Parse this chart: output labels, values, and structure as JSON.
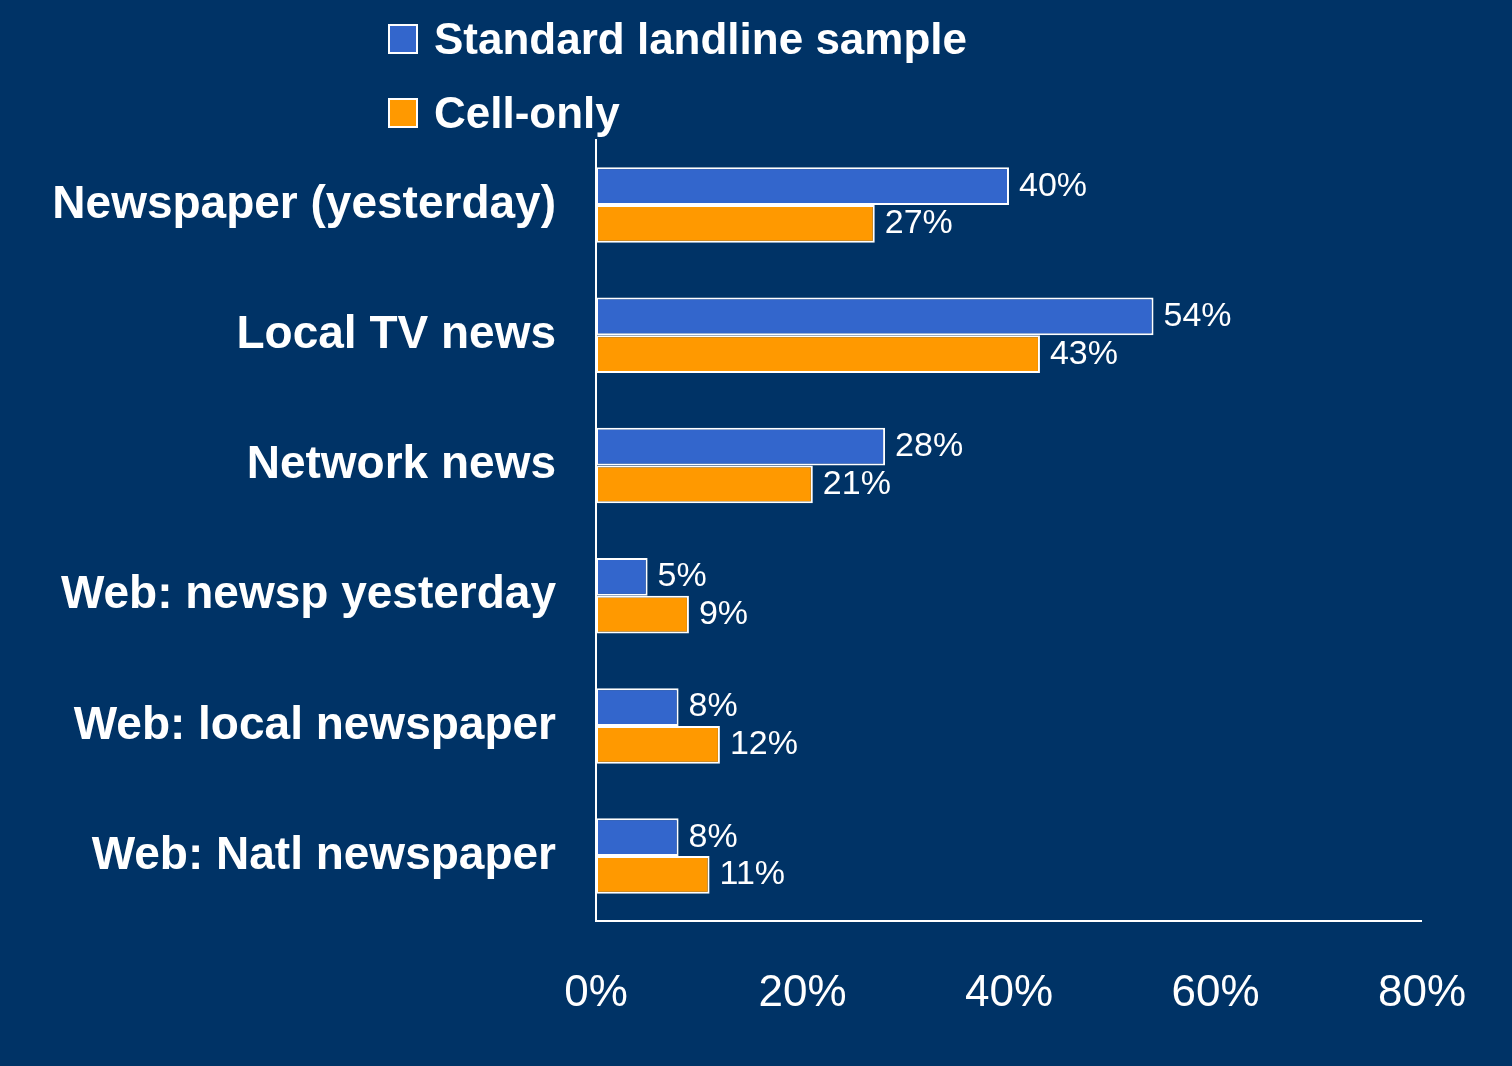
{
  "chart_data": {
    "type": "bar",
    "orientation": "horizontal",
    "categories": [
      "Newspaper (yesterday)",
      "Local TV news",
      "Network news",
      "Web: newsp yesterday",
      "Web: local newspaper",
      "Web: Natl newspaper"
    ],
    "series": [
      {
        "name": "Standard landline sample",
        "color": "#3366cc",
        "values": [
          40,
          54,
          28,
          5,
          8,
          8
        ],
        "value_labels": [
          "40%",
          "54%",
          "28%",
          "5%",
          "8%",
          "8%"
        ]
      },
      {
        "name": "Cell-only",
        "color": "#ff9900",
        "values": [
          27,
          43,
          21,
          9,
          12,
          11
        ],
        "value_labels": [
          "27%",
          "43%",
          "21%",
          "9%",
          "12%",
          "11%"
        ]
      }
    ],
    "xlim": [
      0,
      80
    ],
    "xticks": [
      {
        "value": 0,
        "label": "0%"
      },
      {
        "value": 20,
        "label": "20%"
      },
      {
        "value": 40,
        "label": "40%"
      },
      {
        "value": 60,
        "label": "60%"
      },
      {
        "value": 80,
        "label": "80%"
      }
    ],
    "grid": false,
    "legend": "top"
  }
}
